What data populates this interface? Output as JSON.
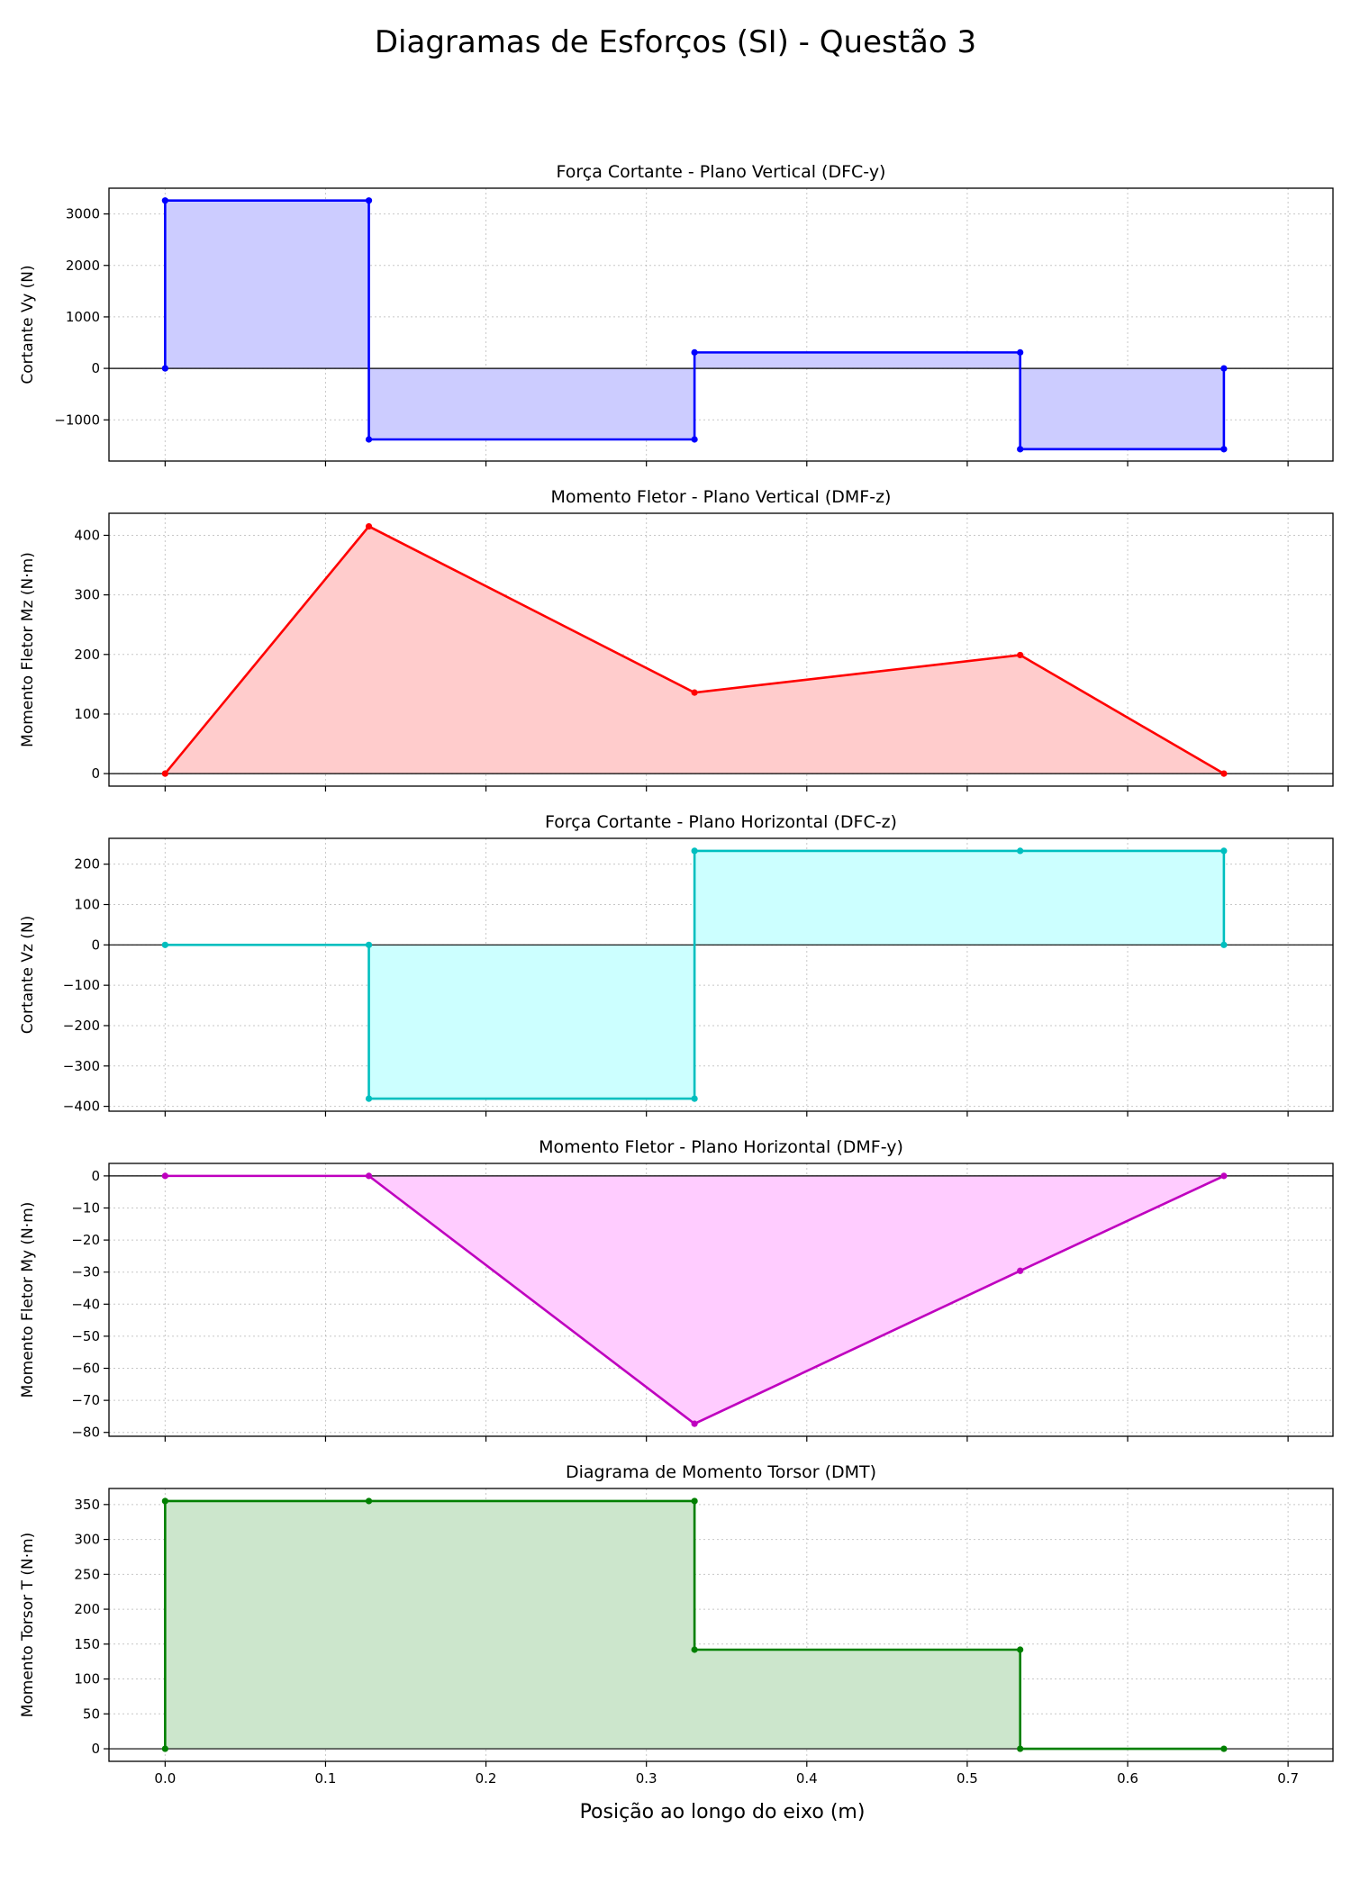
{
  "figure": {
    "title": "Diagramas de Esforços (SI) - Questão 3",
    "xlabel": "Posição ao longo do eixo (m)"
  },
  "chart_data": [
    {
      "type": "line",
      "title": "Força Cortante - Plano Vertical (DFC-y)",
      "ylabel": "Cortante Vy (N)",
      "color": "#0000ff",
      "fill": "#ccccff",
      "x": [
        0,
        0,
        0.127,
        0.127,
        0.33,
        0.33,
        0.533,
        0.533,
        0.66,
        0.66
      ],
      "y": [
        0,
        3260,
        3260,
        -1380,
        -1380,
        310,
        310,
        -1570,
        -1570,
        0
      ],
      "xlim": [
        -0.035,
        0.728
      ],
      "ylim": [
        -1800,
        3500
      ],
      "xticks": [
        0.0,
        0.1,
        0.2,
        0.3,
        0.4,
        0.5,
        0.6,
        0.7
      ],
      "yticks": [
        -1000,
        0,
        1000,
        2000,
        3000
      ],
      "ytick_labels": [
        "−1000",
        "0",
        "1000",
        "2000",
        "3000"
      ],
      "show_xtick_labels": false,
      "grid": true
    },
    {
      "type": "line",
      "title": "Momento Fletor - Plano Vertical (DMF-z)",
      "ylabel": "Momento Fletor Mz (N·m)",
      "color": "#ff0000",
      "fill": "#ffcccc",
      "x": [
        0,
        0.127,
        0.33,
        0.533,
        0.66
      ],
      "y": [
        0,
        415,
        136,
        199,
        0
      ],
      "xlim": [
        -0.035,
        0.728
      ],
      "ylim": [
        -21,
        437
      ],
      "xticks": [
        0.0,
        0.1,
        0.2,
        0.3,
        0.4,
        0.5,
        0.6,
        0.7
      ],
      "yticks": [
        0,
        100,
        200,
        300,
        400
      ],
      "ytick_labels": [
        "0",
        "100",
        "200",
        "300",
        "400"
      ],
      "show_xtick_labels": false,
      "grid": true
    },
    {
      "type": "line",
      "title": "Força Cortante - Plano Horizontal (DFC-z)",
      "ylabel": "Cortante Vz (N)",
      "color": "#00bfbf",
      "fill": "#ccffff",
      "x": [
        0,
        0.127,
        0.127,
        0.33,
        0.33,
        0.533,
        0.66,
        0.66
      ],
      "y": [
        0,
        0,
        -381,
        -381,
        233,
        233,
        233,
        0
      ],
      "xlim": [
        -0.035,
        0.728
      ],
      "ylim": [
        -412,
        264
      ],
      "xticks": [
        0.0,
        0.1,
        0.2,
        0.3,
        0.4,
        0.5,
        0.6,
        0.7
      ],
      "yticks": [
        -400,
        -300,
        -200,
        -100,
        0,
        100,
        200
      ],
      "ytick_labels": [
        "−400",
        "−300",
        "−200",
        "−100",
        "0",
        "100",
        "200"
      ],
      "show_xtick_labels": false,
      "grid": true
    },
    {
      "type": "line",
      "title": "Momento Fletor - Plano Horizontal (DMF-y)",
      "ylabel": "Momento Fletor My (N·m)",
      "color": "#bf00bf",
      "fill": "#ffccff",
      "x": [
        0,
        0.127,
        0.33,
        0.533,
        0.66
      ],
      "y": [
        0,
        0,
        -77.3,
        -29.6,
        0
      ],
      "xlim": [
        -0.035,
        0.728
      ],
      "ylim": [
        -81.2,
        3.9
      ],
      "xticks": [
        0.0,
        0.1,
        0.2,
        0.3,
        0.4,
        0.5,
        0.6,
        0.7
      ],
      "yticks": [
        -80,
        -70,
        -60,
        -50,
        -40,
        -30,
        -20,
        -10,
        0
      ],
      "ytick_labels": [
        "−80",
        "−70",
        "−60",
        "−50",
        "−40",
        "−30",
        "−20",
        "−10",
        "0"
      ],
      "show_xtick_labels": false,
      "grid": true
    },
    {
      "type": "line",
      "title": "Diagrama de Momento Torsor (DMT)",
      "ylabel": "Momento Torsor T (N·m)",
      "color": "#008000",
      "fill": "#cce6cc",
      "x": [
        0,
        0,
        0.127,
        0.33,
        0.33,
        0.533,
        0.533,
        0.66
      ],
      "y": [
        0,
        355,
        355,
        355,
        142,
        142,
        0,
        0
      ],
      "xlim": [
        -0.035,
        0.728
      ],
      "ylim": [
        -18,
        373
      ],
      "xticks": [
        0.0,
        0.1,
        0.2,
        0.3,
        0.4,
        0.5,
        0.6,
        0.7
      ],
      "xtick_labels": [
        "0.0",
        "0.1",
        "0.2",
        "0.3",
        "0.4",
        "0.5",
        "0.6",
        "0.7"
      ],
      "yticks": [
        0,
        50,
        100,
        150,
        200,
        250,
        300,
        350
      ],
      "ytick_labels": [
        "0",
        "50",
        "100",
        "150",
        "200",
        "250",
        "300",
        "350"
      ],
      "show_xtick_labels": true,
      "grid": true
    }
  ]
}
